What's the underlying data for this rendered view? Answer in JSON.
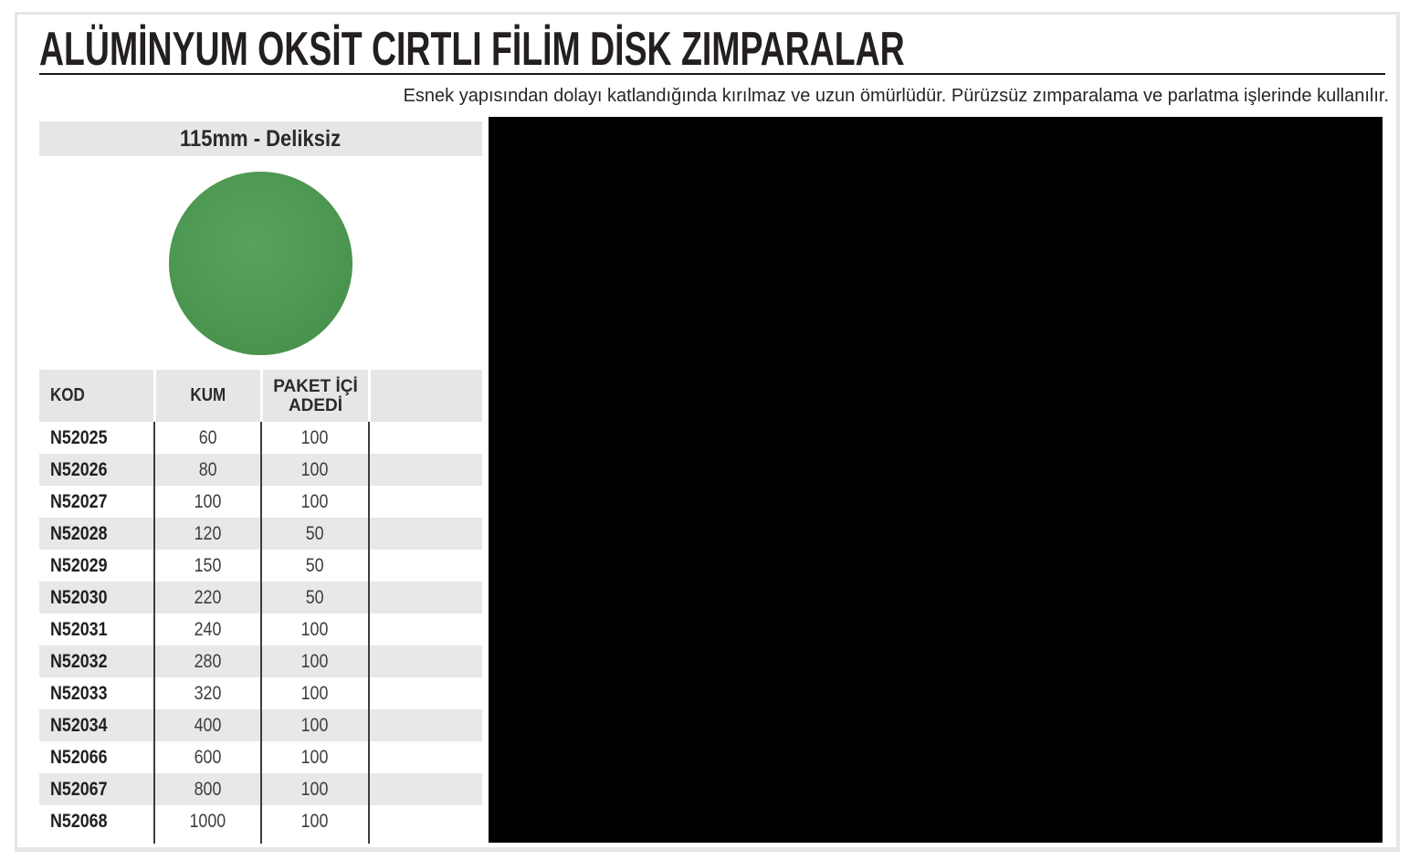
{
  "document": {
    "title": "ALÜMİNYUM OKSİT CIRTLI FİLİM DİSK ZIMPARALAR",
    "subtitle": "Esnek yapısından dolayı katlandığında kırılmaz ve uzun ömürlüdür. Pürüzsüz zımparalama ve parlatma işlerinde kullanılır."
  },
  "product_panel": {
    "header": "115mm - Deliksiz",
    "image": {
      "name": "green-sanding-disc",
      "color": "#4f9b53"
    },
    "table": {
      "columns": [
        "KOD",
        "KUM",
        "PAKET İÇİ ADEDİ",
        ""
      ],
      "rows": [
        [
          "N52025",
          "60",
          "100"
        ],
        [
          "N52026",
          "80",
          "100"
        ],
        [
          "N52027",
          "100",
          "100"
        ],
        [
          "N52028",
          "120",
          "50"
        ],
        [
          "N52029",
          "150",
          "50"
        ],
        [
          "N52030",
          "220",
          "50"
        ],
        [
          "N52031",
          "240",
          "100"
        ],
        [
          "N52032",
          "280",
          "100"
        ],
        [
          "N52033",
          "320",
          "100"
        ],
        [
          "N52034",
          "400",
          "100"
        ],
        [
          "N52066",
          "600",
          "100"
        ],
        [
          "N52067",
          "800",
          "100"
        ],
        [
          "N52068",
          "1000",
          "100"
        ]
      ]
    }
  },
  "right_area": {
    "description": "unrendered black image area"
  },
  "colors": {
    "accent_green": "#4f9b53",
    "band_gray": "#e7e6e6",
    "alt_row_gray": "#e8e8e8",
    "text_dark": "#231f20",
    "black_area": "#000000"
  }
}
